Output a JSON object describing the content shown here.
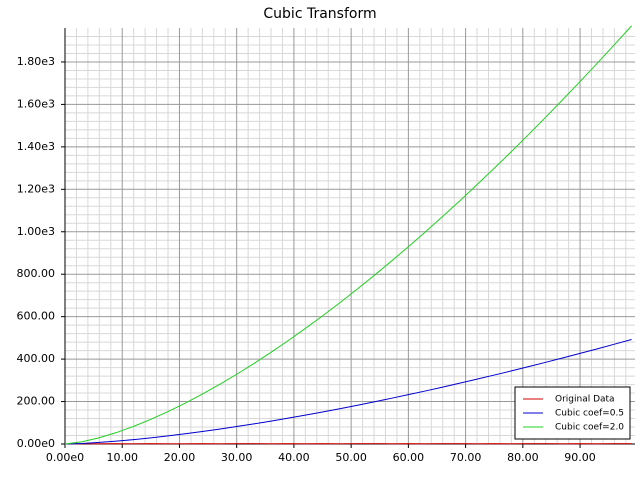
{
  "chart_data": {
    "type": "line",
    "title": "Cubic Transform",
    "x": [
      0,
      3,
      6,
      9,
      12,
      15,
      18,
      21,
      24,
      27,
      30,
      33,
      36,
      39,
      42,
      45,
      48,
      51,
      54,
      57,
      60,
      63,
      66,
      69,
      72,
      75,
      78,
      81,
      84,
      87,
      90,
      93,
      96,
      99
    ],
    "series": [
      {
        "name": "Original Data",
        "color": "#d00000",
        "values": [
          0,
          1,
          1,
          2,
          1,
          2,
          1,
          1,
          2,
          1,
          2,
          2,
          1,
          2,
          1,
          2,
          1,
          2,
          2,
          1,
          2,
          1,
          2,
          2,
          1,
          2,
          1,
          2,
          2,
          1,
          2,
          1,
          2,
          2
        ]
      },
      {
        "name": "Cubic coef=0.5",
        "color": "#0000d0",
        "values": [
          0,
          2.6,
          7.4,
          13.5,
          20.8,
          29.0,
          38.2,
          48.1,
          58.8,
          70.2,
          82.2,
          94.8,
          108,
          121.8,
          136.1,
          150.9,
          166.3,
          182.1,
          198.4,
          215.2,
          232.4,
          250.0,
          268.1,
          286.6,
          305.5,
          324.8,
          344.4,
          364.5,
          384.9,
          405.7,
          426.9,
          448.4,
          470.3,
          492.5
        ]
      },
      {
        "name": "Cubic coef=2.0",
        "color": "#20d020",
        "values": [
          0,
          10.4,
          29.4,
          54,
          83.1,
          116.2,
          152.7,
          192.5,
          235.2,
          280.6,
          328.6,
          379.1,
          432,
          487.1,
          544.4,
          603.7,
          665.1,
          728.4,
          793.6,
          860.7,
          929.5,
          1000.1,
          1072.4,
          1146.3,
          1221.9,
          1299,
          1377.7,
          1458,
          1539.8,
          1623,
          1707.6,
          1793.7,
          1881.2,
          1970.1
        ]
      }
    ],
    "xlim": [
      0,
      99.6
    ],
    "ylim": [
      0,
      1960
    ],
    "xticks": [
      {
        "value": 0,
        "label": "0.00e0"
      },
      {
        "value": 10,
        "label": "10.00"
      },
      {
        "value": 20,
        "label": "20.00"
      },
      {
        "value": 30,
        "label": "30.00"
      },
      {
        "value": 40,
        "label": "40.00"
      },
      {
        "value": 50,
        "label": "50.00"
      },
      {
        "value": 60,
        "label": "60.00"
      },
      {
        "value": 70,
        "label": "70.00"
      },
      {
        "value": 80,
        "label": "80.00"
      },
      {
        "value": 90,
        "label": "90.00"
      }
    ],
    "yticks": [
      {
        "value": 0,
        "label": "0.00e0"
      },
      {
        "value": 200,
        "label": "200.00"
      },
      {
        "value": 400,
        "label": "400.00"
      },
      {
        "value": 600,
        "label": "600.00"
      },
      {
        "value": 800,
        "label": "800.00"
      },
      {
        "value": 1000,
        "label": "1.00e3"
      },
      {
        "value": 1200,
        "label": "1.20e3"
      },
      {
        "value": 1400,
        "label": "1.40e3"
      },
      {
        "value": 1600,
        "label": "1.60e3"
      },
      {
        "value": 1800,
        "label": "1.80e3"
      }
    ],
    "grid": true,
    "minor_grid": true,
    "legend": "lower-right"
  }
}
